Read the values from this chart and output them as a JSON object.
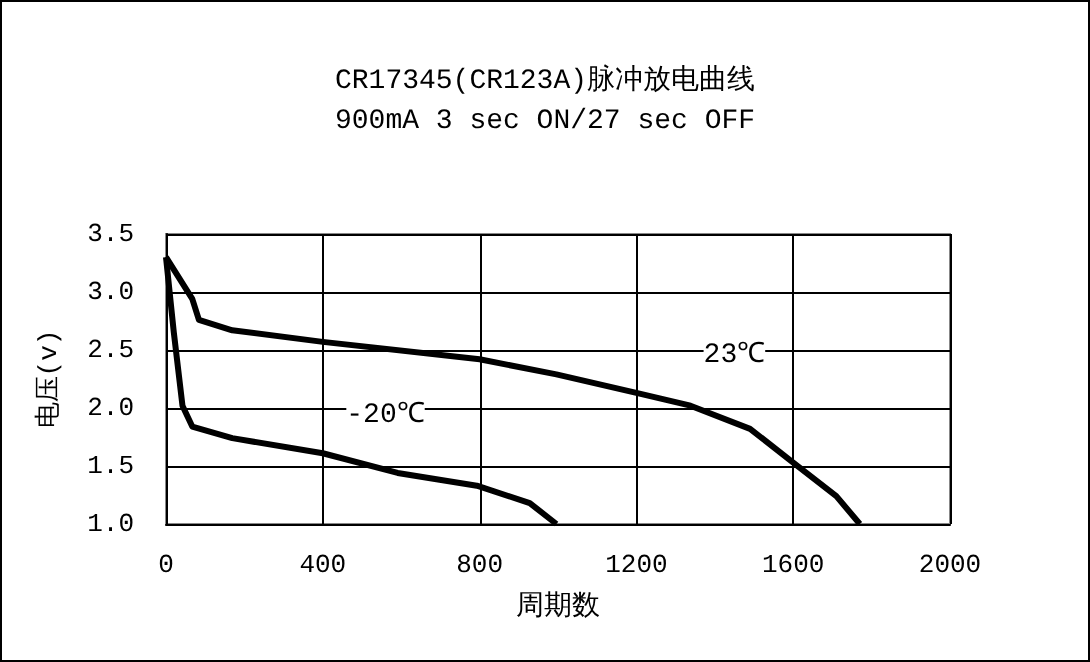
{
  "chart_data": {
    "type": "line",
    "title": "CR17345(CR123A)脉冲放电曲线",
    "subtitle": "900mA 3 sec ON/27 sec OFF",
    "xlabel": "周期数",
    "ylabel": "电压(v)",
    "xlim": [
      0,
      2000
    ],
    "xticks": [
      0,
      400,
      800,
      1200,
      1600,
      2000
    ],
    "ylim": [
      1.0,
      3.5
    ],
    "yticks": [
      {
        "value": 1.0,
        "label": "1.0"
      },
      {
        "value": 1.5,
        "label": "1.5"
      },
      {
        "value": 2.0,
        "label": "2.0"
      },
      {
        "value": 2.5,
        "label": "2.5"
      },
      {
        "value": 3.0,
        "label": "3.0"
      },
      {
        "value": 3.5,
        "label": "3.5"
      }
    ],
    "grid": true,
    "marker": "none",
    "line_style": "solid",
    "annotations": [
      {
        "text": "23℃",
        "x": 1450,
        "y": 2.45
      },
      {
        "text": "-20℃",
        "x": 560,
        "y": 1.93
      }
    ],
    "series": [
      {
        "color": "#000000",
        "x": [
          0,
          67,
          84,
          169,
          400,
          800,
          996,
          1200,
          1338,
          1490,
          1600,
          1710,
          1770
        ],
        "values": [
          3.3,
          2.94,
          2.76,
          2.67,
          2.57,
          2.42,
          2.29,
          2.13,
          2.02,
          1.82,
          1.53,
          1.24,
          1.0
        ]
      },
      {
        "color": "#000000",
        "x": [
          0,
          20,
          42,
          67,
          169,
          400,
          591,
          793,
          928,
          996
        ],
        "values": [
          3.3,
          2.65,
          2.02,
          1.84,
          1.74,
          1.61,
          1.44,
          1.33,
          1.18,
          1.0
        ]
      }
    ]
  }
}
